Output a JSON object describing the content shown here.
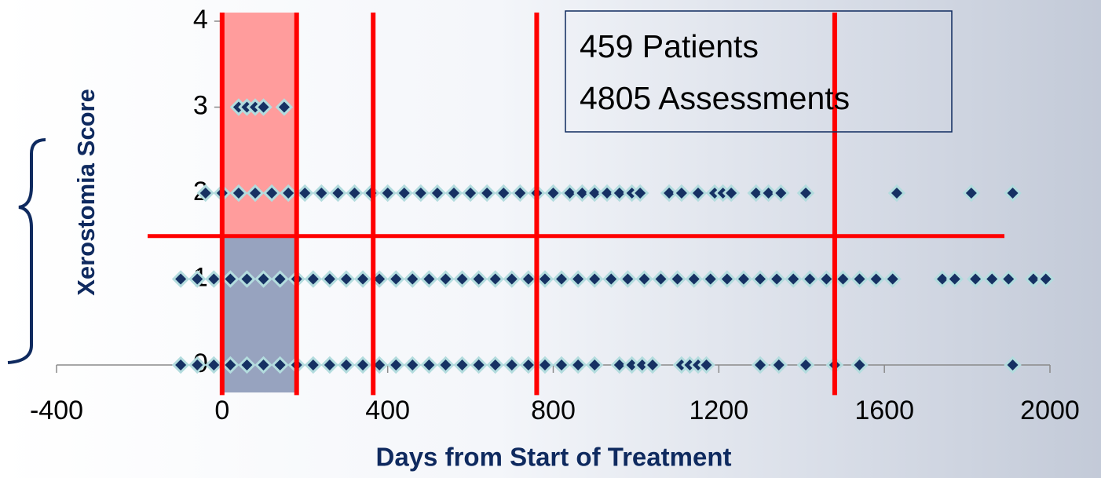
{
  "chart_data": {
    "type": "scatter",
    "xlabel": "Days from Start of Treatment",
    "ylabel": "Xerostomia Score",
    "xlim": [
      -400,
      2000
    ],
    "xticks": [
      -400,
      0,
      400,
      800,
      1200,
      1600,
      2000
    ],
    "ylim": [
      0,
      4
    ],
    "yticks": [
      0,
      1,
      2,
      3,
      4
    ],
    "marker_color": "#163163",
    "marker_halo": "#b3dcde",
    "annotation": [
      "459 Patients",
      "4805 Assessments"
    ],
    "reference_color": "#ff0000",
    "vlines": [
      0,
      180,
      365,
      760,
      1480
    ],
    "vline_span": [
      -0.35,
      4.1
    ],
    "hline": 1.5,
    "hline_span": [
      -180,
      1890
    ],
    "regions": [
      {
        "x": [
          0,
          180
        ],
        "y": [
          1.5,
          4.1
        ],
        "color": "#ff9c9c"
      },
      {
        "x": [
          0,
          180
        ],
        "y": [
          -0.32,
          1.5
        ],
        "color": "#97a3bf"
      }
    ],
    "series": [
      {
        "x": [
          -100,
          -60,
          -20,
          20,
          60,
          100,
          140,
          180,
          220,
          260,
          300,
          340,
          380,
          420,
          460,
          500,
          540,
          580,
          620,
          660,
          700,
          740,
          780,
          820,
          860,
          900,
          960,
          990,
          1015,
          1040,
          1110,
          1130,
          1150,
          1170,
          1300,
          1345,
          1410,
          1480,
          1540,
          1910
        ],
        "values": [
          0,
          0,
          0,
          0,
          0,
          0,
          0,
          0,
          0,
          0,
          0,
          0,
          0,
          0,
          0,
          0,
          0,
          0,
          0,
          0,
          0,
          0,
          0,
          0,
          0,
          0,
          0,
          0,
          0,
          0,
          0,
          0,
          0,
          0,
          0,
          0,
          0,
          0,
          0,
          0
        ]
      },
      {
        "x": [
          -100,
          -60,
          -20,
          20,
          60,
          100,
          140,
          180,
          220,
          260,
          300,
          340,
          380,
          420,
          460,
          500,
          540,
          580,
          620,
          660,
          700,
          740,
          780,
          820,
          860,
          900,
          940,
          980,
          1020,
          1060,
          1100,
          1140,
          1180,
          1220,
          1260,
          1300,
          1340,
          1380,
          1420,
          1460,
          1500,
          1540,
          1580,
          1620,
          1740,
          1770,
          1820,
          1860,
          1900,
          1960,
          1990
        ],
        "values": [
          1,
          1,
          1,
          1,
          1,
          1,
          1,
          1,
          1,
          1,
          1,
          1,
          1,
          1,
          1,
          1,
          1,
          1,
          1,
          1,
          1,
          1,
          1,
          1,
          1,
          1,
          1,
          1,
          1,
          1,
          1,
          1,
          1,
          1,
          1,
          1,
          1,
          1,
          1,
          1,
          1,
          1,
          1,
          1,
          1,
          1,
          1,
          1,
          1,
          1,
          1
        ]
      },
      {
        "x": [
          -40,
          0,
          40,
          80,
          120,
          160,
          200,
          240,
          280,
          320,
          360,
          400,
          440,
          480,
          520,
          560,
          600,
          640,
          680,
          720,
          760,
          800,
          840,
          870,
          900,
          930,
          960,
          990,
          1010,
          1080,
          1110,
          1150,
          1190,
          1210,
          1230,
          1290,
          1320,
          1350,
          1410,
          1630,
          1810,
          1910
        ],
        "values": [
          2,
          2,
          2,
          2,
          2,
          2,
          2,
          2,
          2,
          2,
          2,
          2,
          2,
          2,
          2,
          2,
          2,
          2,
          2,
          2,
          2,
          2,
          2,
          2,
          2,
          2,
          2,
          2,
          2,
          2,
          2,
          2,
          2,
          2,
          2,
          2,
          2,
          2,
          2,
          2,
          2,
          2
        ]
      },
      {
        "x": [
          40,
          60,
          80,
          100,
          150
        ],
        "values": [
          3,
          3,
          3,
          3,
          3
        ]
      }
    ]
  }
}
